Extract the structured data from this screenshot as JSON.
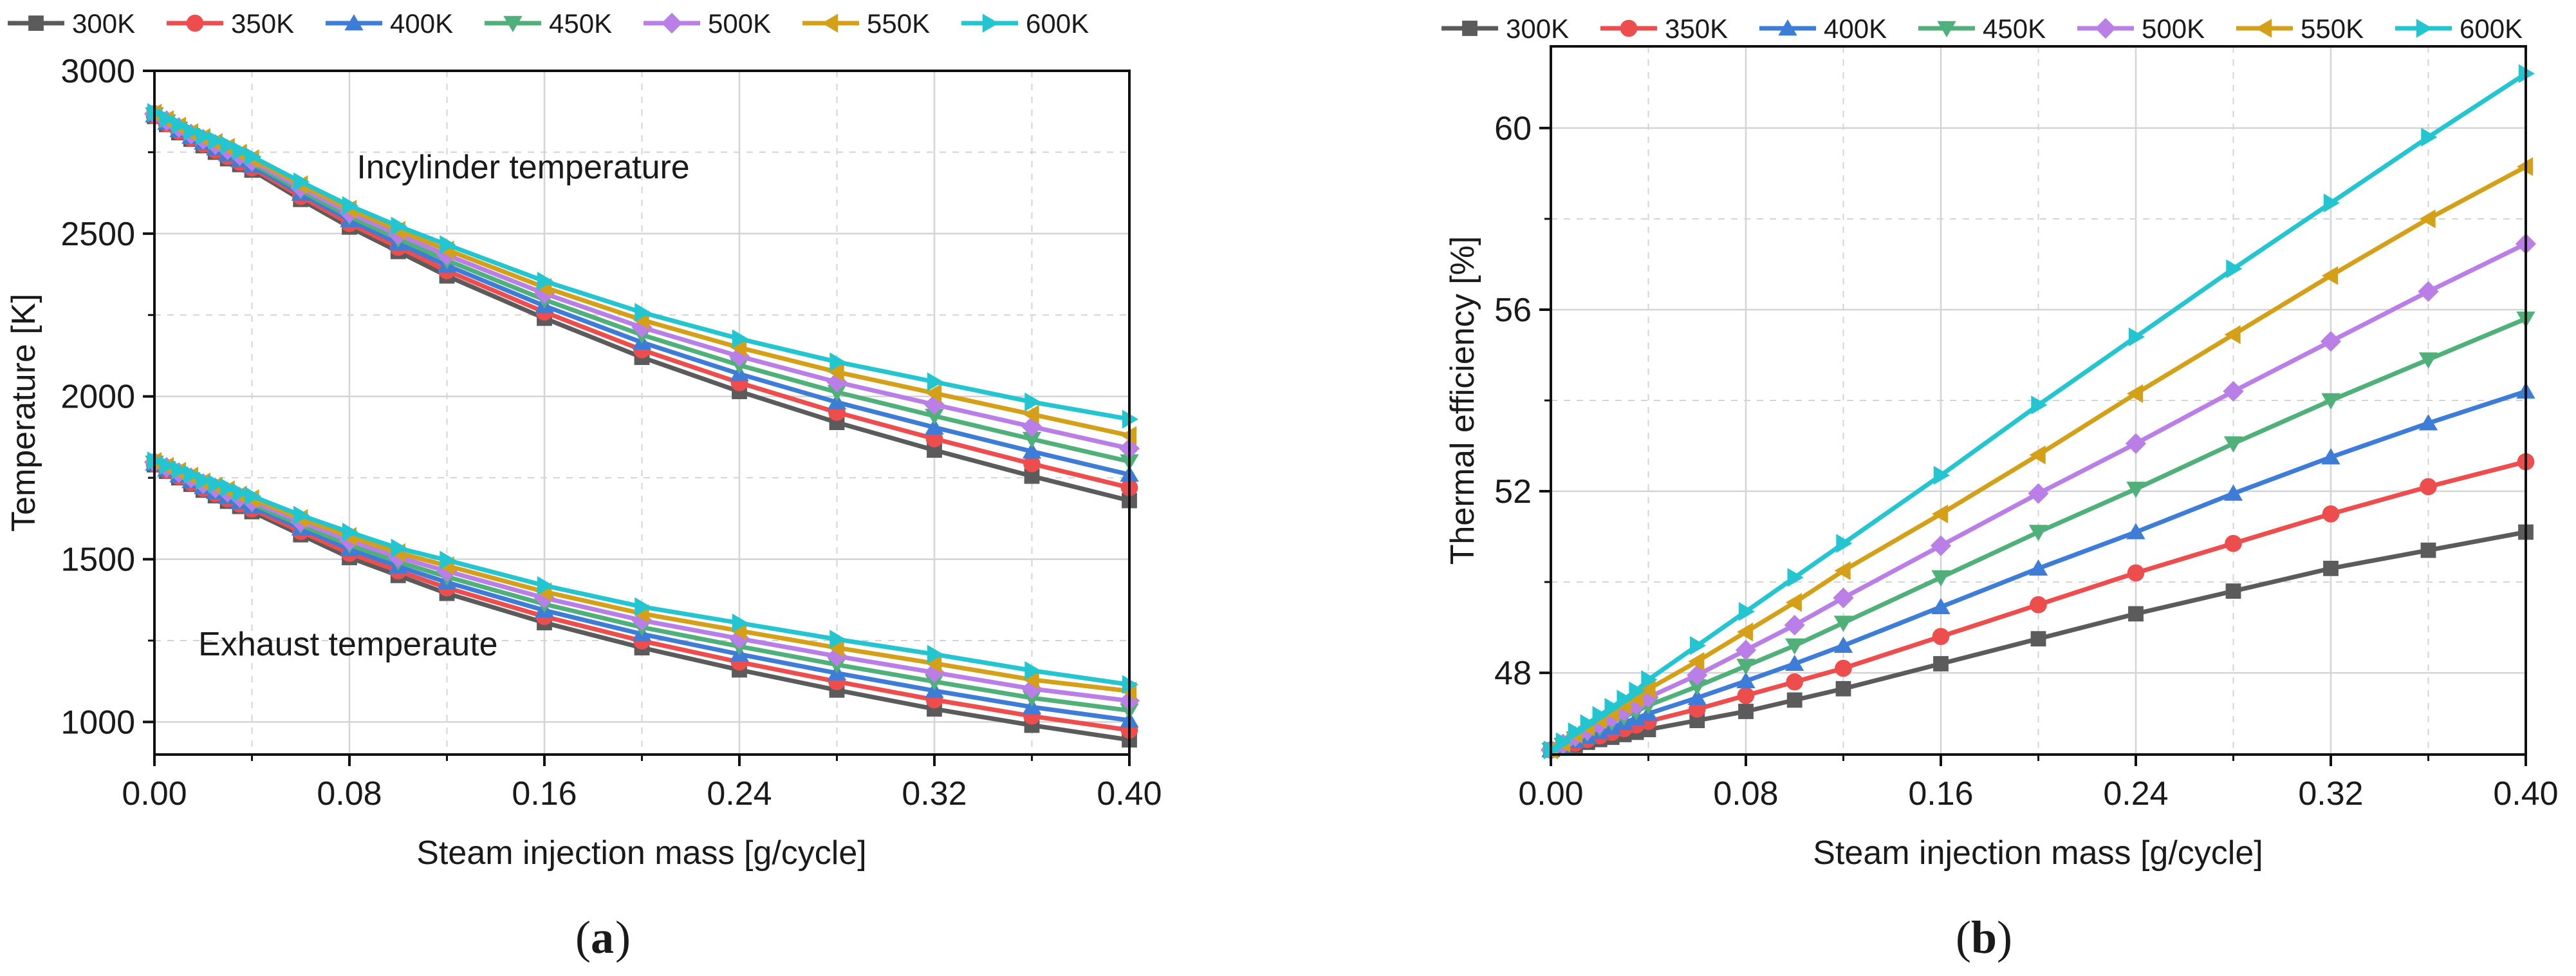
{
  "figure": {
    "panel_a_label": "a",
    "panel_b_label": "b",
    "legend_labels": [
      "300K",
      "350K",
      "400K",
      "450K",
      "500K",
      "550K",
      "600K"
    ]
  },
  "chart_data": [
    {
      "type": "line",
      "panel": "a",
      "title": "",
      "xlabel": "Steam injection mass [g/cycle]",
      "ylabel": "Temperature [K]",
      "xlim": [
        0,
        0.4
      ],
      "ylim": [
        900,
        3000
      ],
      "xticks": [
        0,
        0.08,
        0.16,
        0.24,
        0.32,
        0.4
      ],
      "xtick_labels": [
        "0.00",
        "0.08",
        "0.16",
        "0.24",
        "0.32",
        "0.40"
      ],
      "yticks": [
        1000,
        1500,
        2000,
        2500,
        3000
      ],
      "ytick_labels": [
        "1000",
        "1500",
        "2000",
        "2500",
        "3000"
      ],
      "grid": true,
      "legend_position": "top",
      "annotations": [
        {
          "text": "Incylinder temperature",
          "x": 0.083,
          "y": 2670
        },
        {
          "text": "Exhaust temperaute",
          "x": 0.018,
          "y": 1205
        }
      ],
      "x": [
        0,
        0.005,
        0.01,
        0.015,
        0.02,
        0.025,
        0.03,
        0.035,
        0.04,
        0.06,
        0.08,
        0.1,
        0.12,
        0.16,
        0.2,
        0.24,
        0.28,
        0.32,
        0.36,
        0.4
      ],
      "groups": [
        {
          "name": "Incylinder temperature",
          "series": [
            {
              "name": "300K",
              "values": [
                2860,
                2835,
                2810,
                2790,
                2770,
                2750,
                2730,
                2712,
                2695,
                2605,
                2520,
                2445,
                2370,
                2240,
                2120,
                2015,
                1920,
                1835,
                1755,
                1680
              ]
            },
            {
              "name": "350K",
              "values": [
                2862,
                2838,
                2814,
                2794,
                2775,
                2756,
                2737,
                2719,
                2702,
                2614,
                2531,
                2458,
                2386,
                2259,
                2143,
                2042,
                1951,
                1870,
                1793,
                1720
              ]
            },
            {
              "name": "400K",
              "values": [
                2864,
                2841,
                2818,
                2798,
                2780,
                2762,
                2744,
                2726,
                2709,
                2623,
                2542,
                2471,
                2402,
                2278,
                2166,
                2069,
                1982,
                1905,
                1831,
                1760
              ]
            },
            {
              "name": "450K",
              "values": [
                2866,
                2844,
                2822,
                2802,
                2785,
                2768,
                2751,
                2733,
                2716,
                2632,
                2553,
                2484,
                2418,
                2297,
                2189,
                2096,
                2013,
                1940,
                1869,
                1800
              ]
            },
            {
              "name": "500K",
              "values": [
                2868,
                2847,
                2826,
                2806,
                2790,
                2774,
                2758,
                2740,
                2723,
                2641,
                2564,
                2497,
                2434,
                2316,
                2212,
                2123,
                2044,
                1975,
                1907,
                1840
              ]
            },
            {
              "name": "550K",
              "values": [
                2870,
                2850,
                2830,
                2810,
                2795,
                2780,
                2765,
                2747,
                2730,
                2650,
                2575,
                2510,
                2450,
                2335,
                2235,
                2150,
                2075,
                2010,
                1945,
                1880
              ]
            },
            {
              "name": "600K",
              "values": [
                2872,
                2853,
                2834,
                2814,
                2800,
                2786,
                2772,
                2754,
                2737,
                2659,
                2586,
                2523,
                2466,
                2354,
                2258,
                2177,
                2106,
                2045,
                1983,
                1930
              ]
            }
          ]
        },
        {
          "name": "Exhaust temperaute",
          "series": [
            {
              "name": "300K",
              "values": [
                1790,
                1770,
                1750,
                1730,
                1712,
                1695,
                1678,
                1662,
                1646,
                1575,
                1505,
                1450,
                1395,
                1305,
                1228,
                1160,
                1098,
                1040,
                990,
                945
              ]
            },
            {
              "name": "350K",
              "values": [
                1792,
                1773,
                1754,
                1735,
                1717,
                1701,
                1685,
                1669,
                1654,
                1585,
                1518,
                1464,
                1412,
                1324,
                1249,
                1184,
                1124,
                1068,
                1018,
                975
              ]
            },
            {
              "name": "400K",
              "values": [
                1794,
                1776,
                1758,
                1740,
                1722,
                1707,
                1692,
                1676,
                1662,
                1595,
                1531,
                1478,
                1429,
                1343,
                1270,
                1208,
                1150,
                1096,
                1046,
                1005
              ]
            },
            {
              "name": "450K",
              "values": [
                1796,
                1779,
                1762,
                1745,
                1727,
                1713,
                1699,
                1683,
                1670,
                1605,
                1544,
                1492,
                1446,
                1362,
                1291,
                1232,
                1176,
                1124,
                1074,
                1035
              ]
            },
            {
              "name": "500K",
              "values": [
                1798,
                1782,
                1766,
                1750,
                1732,
                1719,
                1706,
                1690,
                1678,
                1615,
                1557,
                1506,
                1463,
                1381,
                1312,
                1256,
                1202,
                1152,
                1102,
                1065
              ]
            },
            {
              "name": "550K",
              "values": [
                1800,
                1785,
                1770,
                1755,
                1737,
                1725,
                1713,
                1697,
                1686,
                1625,
                1570,
                1520,
                1480,
                1400,
                1333,
                1280,
                1228,
                1180,
                1130,
                1095
              ]
            },
            {
              "name": "600K",
              "values": [
                1802,
                1788,
                1774,
                1760,
                1742,
                1731,
                1720,
                1704,
                1694,
                1635,
                1583,
                1534,
                1497,
                1419,
                1354,
                1304,
                1254,
                1208,
                1158,
                1115
              ]
            }
          ]
        }
      ]
    },
    {
      "type": "line",
      "panel": "b",
      "title": "",
      "xlabel": "Steam injection mass [g/cycle]",
      "ylabel": "Thermal efficiency [%]",
      "xlim": [
        0,
        0.4
      ],
      "ylim": [
        46.2,
        61.8
      ],
      "xticks": [
        0,
        0.08,
        0.16,
        0.24,
        0.32,
        0.4
      ],
      "xtick_labels": [
        "0.00",
        "0.08",
        "0.16",
        "0.24",
        "0.32",
        "0.40"
      ],
      "yticks": [
        48,
        52,
        56,
        60
      ],
      "ytick_labels": [
        "48",
        "52",
        "56",
        "60"
      ],
      "grid": true,
      "legend_position": "top",
      "x": [
        0,
        0.005,
        0.01,
        0.015,
        0.02,
        0.025,
        0.03,
        0.035,
        0.04,
        0.06,
        0.08,
        0.1,
        0.12,
        0.16,
        0.2,
        0.24,
        0.28,
        0.32,
        0.36,
        0.4
      ],
      "series": [
        {
          "name": "300K",
          "values": [
            46.3,
            46.35,
            46.4,
            46.47,
            46.53,
            46.58,
            46.64,
            46.69,
            46.75,
            46.95,
            47.15,
            47.4,
            47.65,
            48.2,
            48.75,
            49.3,
            49.8,
            50.3,
            50.7,
            51.1
          ]
        },
        {
          "name": "350K",
          "values": [
            46.3,
            46.37,
            46.45,
            46.53,
            46.61,
            46.69,
            46.77,
            46.85,
            46.93,
            47.2,
            47.5,
            47.8,
            48.1,
            48.8,
            49.5,
            50.2,
            50.85,
            51.5,
            52.1,
            52.65
          ]
        },
        {
          "name": "400K",
          "values": [
            46.3,
            46.39,
            46.5,
            46.6,
            46.7,
            46.8,
            46.9,
            47.0,
            47.1,
            47.45,
            47.82,
            48.2,
            48.6,
            49.45,
            50.3,
            51.1,
            51.95,
            52.75,
            53.5,
            54.2
          ]
        },
        {
          "name": "450K",
          "values": [
            46.3,
            46.41,
            46.55,
            46.67,
            46.79,
            46.91,
            47.03,
            47.15,
            47.28,
            47.7,
            48.15,
            48.6,
            49.1,
            50.1,
            51.1,
            52.05,
            53.05,
            54.0,
            54.9,
            55.8
          ]
        },
        {
          "name": "500K",
          "values": [
            46.3,
            46.43,
            46.6,
            46.74,
            46.88,
            47.02,
            47.16,
            47.3,
            47.46,
            47.95,
            48.5,
            49.05,
            49.65,
            50.8,
            51.95,
            53.05,
            54.2,
            55.3,
            56.4,
            57.45
          ]
        },
        {
          "name": "550K",
          "values": [
            46.3,
            46.45,
            46.65,
            46.81,
            46.97,
            47.13,
            47.29,
            47.45,
            47.64,
            48.25,
            48.9,
            49.55,
            50.25,
            51.5,
            52.8,
            54.15,
            55.45,
            56.75,
            58.0,
            59.15
          ]
        },
        {
          "name": "600K",
          "values": [
            46.3,
            46.48,
            46.7,
            46.88,
            47.06,
            47.24,
            47.42,
            47.6,
            47.85,
            48.6,
            49.35,
            50.1,
            50.85,
            52.35,
            53.9,
            55.4,
            56.9,
            58.35,
            59.8,
            61.2
          ]
        }
      ]
    }
  ],
  "styles": {
    "series_colors": [
      "#5b5b5b",
      "#ee4d4d",
      "#3d7dd8",
      "#4fb07a",
      "#b97fe6",
      "#d4a017",
      "#22c5d0"
    ],
    "series_markers": [
      "square",
      "circle",
      "triangle-up",
      "triangle-down",
      "diamond",
      "triangle-left",
      "triangle-right"
    ],
    "grid_color": "#d4d4d4",
    "axis_color": "#111111"
  }
}
